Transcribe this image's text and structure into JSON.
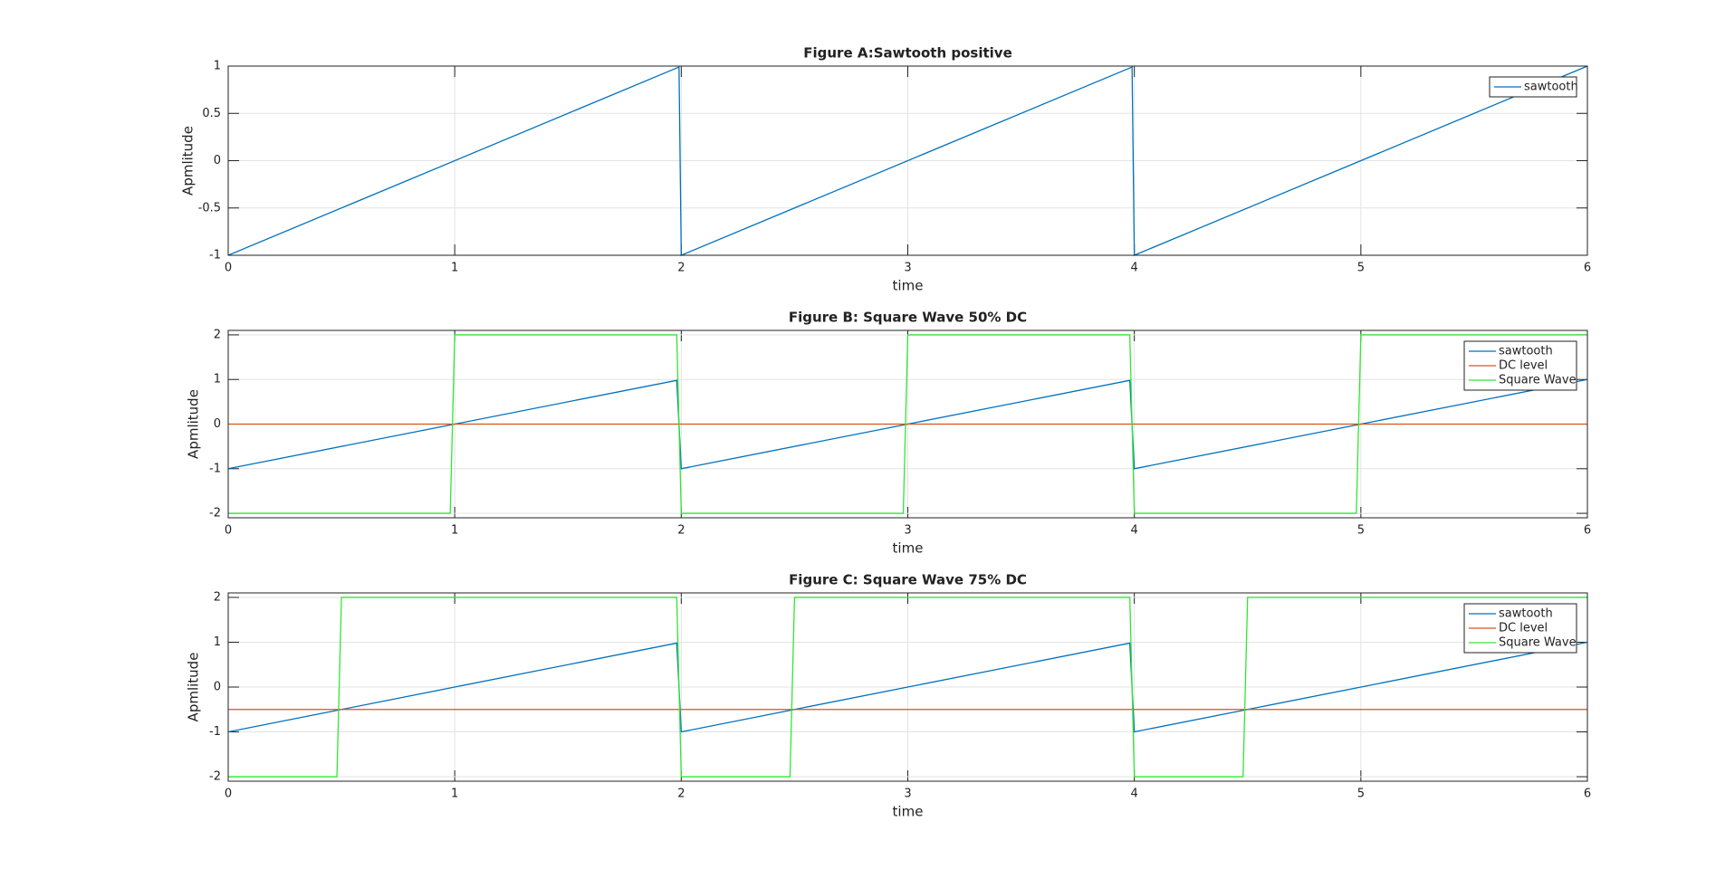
{
  "chart_data": [
    {
      "type": "line",
      "title": "Figure A:Sawtooth positive",
      "x_label": "time",
      "y_label": "Apmlitude",
      "x": [
        0,
        1.99,
        2,
        3.99,
        4,
        6
      ],
      "series": [
        {
          "name": "sawtooth",
          "color": "#0072bd",
          "values": [
            -1,
            0.99,
            -1,
            0.99,
            -1,
            1
          ]
        }
      ],
      "xlim": [
        0,
        6
      ],
      "xticks": [
        0,
        1,
        2,
        3,
        4,
        5,
        6
      ],
      "ylim": [
        -1,
        1
      ],
      "yticks": [
        -1,
        -0.5,
        0,
        0.5,
        1
      ],
      "grid": true,
      "legend": "northeast"
    },
    {
      "type": "line",
      "title": "Figure B: Square Wave 50% DC",
      "x_label": "time",
      "y_label": "Apmlitude",
      "x": [
        0,
        0.98,
        1,
        1.98,
        2,
        2.98,
        3,
        3.98,
        4,
        4.98,
        5,
        6
      ],
      "series": [
        {
          "name": "sawtooth",
          "color": "#0072bd",
          "values": [
            -1,
            -0.02,
            0,
            0.98,
            -1,
            -0.02,
            0,
            0.98,
            -1,
            -0.02,
            0,
            1
          ]
        },
        {
          "name": "DC level",
          "color": "#d95319",
          "values": [
            0,
            0,
            0,
            0,
            0,
            0,
            0,
            0,
            0,
            0,
            0,
            0
          ]
        },
        {
          "name": "Square Wave",
          "color": "#33e633",
          "values": [
            -2,
            -2,
            2,
            2,
            -2,
            -2,
            2,
            2,
            -2,
            -2,
            2,
            2
          ]
        }
      ],
      "xlim": [
        0,
        6
      ],
      "xticks": [
        0,
        1,
        2,
        3,
        4,
        5,
        6
      ],
      "ylim": [
        -2.1,
        2.1
      ],
      "yticks": [
        -2,
        -1,
        0,
        1,
        2
      ],
      "grid": true,
      "legend": "northeast"
    },
    {
      "type": "line",
      "title": "Figure C: Square Wave 75% DC",
      "x_label": "time",
      "y_label": "Apmlitude",
      "x": [
        0,
        0.48,
        0.5,
        1.98,
        2,
        2.48,
        2.5,
        3.98,
        4,
        4.48,
        4.5,
        6
      ],
      "series": [
        {
          "name": "sawtooth",
          "color": "#0072bd",
          "values": [
            -1,
            -0.52,
            -0.5,
            0.98,
            -1,
            -0.52,
            -0.5,
            0.98,
            -1,
            -0.52,
            -0.5,
            1
          ]
        },
        {
          "name": "DC level",
          "color": "#d95319",
          "values": [
            -0.5,
            -0.5,
            -0.5,
            -0.5,
            -0.5,
            -0.5,
            -0.5,
            -0.5,
            -0.5,
            -0.5,
            -0.5,
            -0.5
          ]
        },
        {
          "name": "Square Wave",
          "color": "#33e633",
          "values": [
            -2,
            -2,
            2,
            2,
            -2,
            -2,
            2,
            2,
            -2,
            -2,
            2,
            2
          ]
        }
      ],
      "xlim": [
        0,
        6
      ],
      "xticks": [
        0,
        1,
        2,
        3,
        4,
        5,
        6
      ],
      "ylim": [
        -2.1,
        2.1
      ],
      "yticks": [
        -2,
        -1,
        0,
        1,
        2
      ],
      "grid": true,
      "legend": "northeast"
    }
  ]
}
